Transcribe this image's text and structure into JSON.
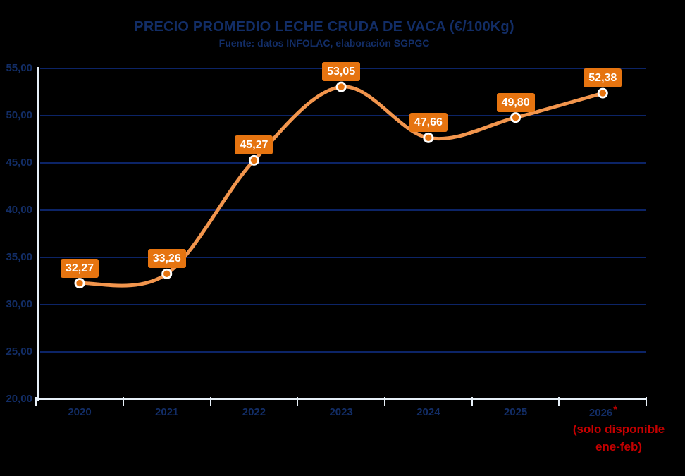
{
  "title": "PRECIO PROMEDIO LECHE CRUDA DE VACA (€/100Kg)",
  "subtitle": "Fuente: datos INFOLAC, elaboración SGPGC",
  "chart_data": {
    "type": "line",
    "smooth": true,
    "grid": true,
    "legend": "none",
    "categories": [
      "2020",
      "2021",
      "2022",
      "2023",
      "2024",
      "2025",
      "2026"
    ],
    "values": [
      32.27,
      33.26,
      45.27,
      53.05,
      47.66,
      49.8,
      52.38
    ],
    "data_labels": [
      "32,27",
      "33,26",
      "45,27",
      "53,05",
      "47,66",
      "49,80",
      "52,38"
    ],
    "y_tick_labels": [
      "55,00",
      "50,00",
      "45,00",
      "40,00",
      "35,00",
      "30,00",
      "25,00",
      "20,00"
    ],
    "y_tick_values": [
      55,
      50,
      45,
      40,
      35,
      30,
      25,
      20
    ],
    "ylim": [
      20,
      55
    ],
    "xlabel": "",
    "ylabel": "",
    "last_category_asterisk": "*",
    "annotation": {
      "line1": "(solo disponible",
      "line2": "ene-feb)"
    }
  },
  "colors": {
    "background": "#000000",
    "text_navy": "#122D66",
    "gridline": "#0C2467",
    "axis_line": "#E7F0F8",
    "series_line": "#F2954D",
    "label_box": "#E67410",
    "label_text": "#FFFFFF",
    "marker_fill": "#E67410",
    "marker_ring": "#FFFFFF",
    "annotation_red": "#C40000"
  }
}
